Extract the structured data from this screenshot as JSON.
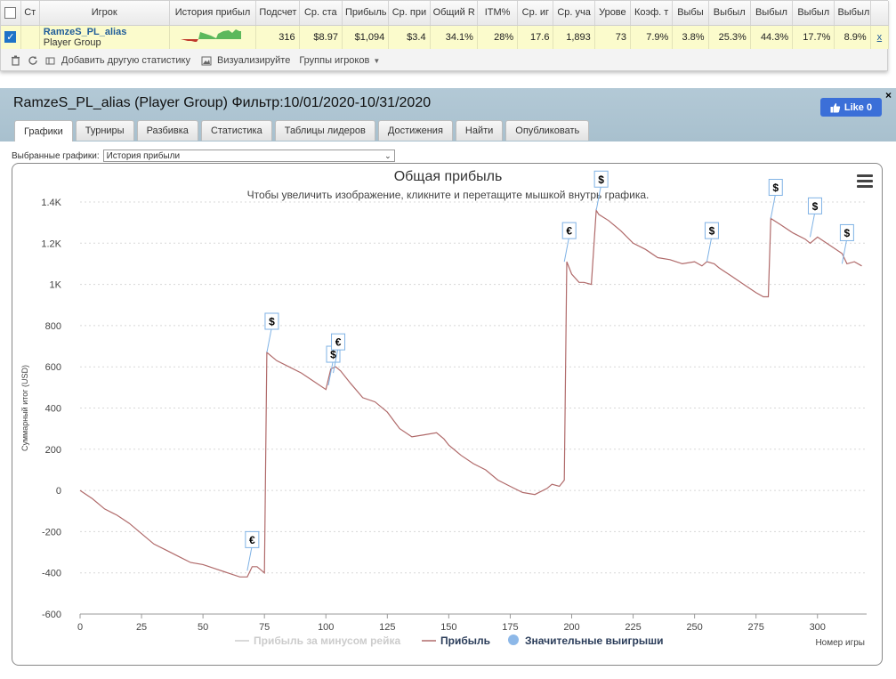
{
  "table": {
    "headers": [
      "Ст",
      "Игрок",
      "История прибыл",
      "Подсчет",
      "Ср. ста",
      "Прибыль",
      "Ср. при",
      "Общий R",
      "ITM%",
      "Ср. иг",
      "Ср. уча",
      "Урове",
      "Коэф. т",
      "Выбы",
      "Выбыл",
      "Выбыл",
      "Выбыл",
      "Выбыл"
    ],
    "row": {
      "player_name": "RamzeS_PL_alias",
      "player_group": "Player Group",
      "cells": [
        "316",
        "$8.97",
        "$1,094",
        "$3.4",
        "34.1%",
        "28%",
        "17.6",
        "1,893",
        "73",
        "7.9%",
        "3.8%",
        "25.3%",
        "44.3%",
        "17.7%",
        "8.9%"
      ],
      "remove": "x"
    }
  },
  "toolbar": {
    "add_stats": "Добавить другую статистику",
    "visualize": "Визуализируйте",
    "player_groups": "Группы игроков"
  },
  "main": {
    "title": "RamzeS_PL_alias (Player Group) Фильтр:10/01/2020-10/31/2020",
    "like_label": "Like 0",
    "close": "×",
    "tabs": [
      "Графики",
      "Турниры",
      "Разбивка",
      "Статистика",
      "Таблицы лидеров",
      "Достижения",
      "Найти",
      "Опубликовать"
    ],
    "selected_charts_label": "Выбранные графики:",
    "selected_chart_value": "История прибыли"
  },
  "chart_data": {
    "type": "line",
    "title": "Общая прибыль",
    "subtitle": "Чтобы увеличить изображение, кликните и перетащите мышкой внутрь графика.",
    "ylabel": "Суммарный итог (USD)",
    "xlabel": "Номер игры",
    "xlim": [
      0,
      320
    ],
    "ylim": [
      -600,
      1400
    ],
    "x_ticks": [
      0,
      25,
      50,
      75,
      100,
      125,
      150,
      175,
      200,
      225,
      250,
      275,
      300
    ],
    "y_ticks": [
      {
        "v": 1400,
        "label": "1.4K"
      },
      {
        "v": 1200,
        "label": "1.2K"
      },
      {
        "v": 1000,
        "label": "1K"
      },
      {
        "v": 800,
        "label": "800"
      },
      {
        "v": 600,
        "label": "600"
      },
      {
        "v": 400,
        "label": "400"
      },
      {
        "v": 200,
        "label": "200"
      },
      {
        "v": 0,
        "label": "0"
      },
      {
        "v": -200,
        "label": "-200"
      },
      {
        "v": -400,
        "label": "-400"
      },
      {
        "v": -600,
        "label": "-600"
      }
    ],
    "grid": true,
    "series": [
      {
        "name": "Прибыль за минусом рейка",
        "color": "#cccccc",
        "hidden": true,
        "x": [],
        "y": []
      },
      {
        "name": "Прибыль",
        "color": "#b06a6a",
        "x": [
          0,
          5,
          10,
          15,
          20,
          25,
          30,
          35,
          40,
          45,
          50,
          55,
          60,
          65,
          68,
          70,
          72,
          74,
          75,
          76,
          80,
          85,
          90,
          95,
          100,
          102,
          104,
          106,
          110,
          115,
          120,
          125,
          130,
          135,
          140,
          145,
          148,
          150,
          155,
          160,
          165,
          170,
          175,
          180,
          185,
          190,
          192,
          195,
          197,
          198,
          200,
          203,
          205,
          208,
          210,
          211,
          215,
          220,
          225,
          230,
          235,
          240,
          245,
          250,
          253,
          255,
          258,
          260,
          265,
          270,
          275,
          278,
          280,
          281,
          285,
          290,
          295,
          297,
          300,
          305,
          310,
          312,
          315,
          318
        ],
        "y": [
          0,
          -40,
          -90,
          -120,
          -160,
          -210,
          -260,
          -290,
          -320,
          -350,
          -360,
          -380,
          -400,
          -420,
          -420,
          -370,
          -370,
          -390,
          -400,
          670,
          630,
          600,
          570,
          530,
          490,
          590,
          600,
          580,
          520,
          450,
          430,
          380,
          300,
          260,
          270,
          280,
          250,
          220,
          170,
          130,
          100,
          50,
          20,
          -10,
          -20,
          10,
          30,
          20,
          50,
          1110,
          1050,
          1010,
          1010,
          1000,
          1360,
          1340,
          1310,
          1260,
          1200,
          1170,
          1130,
          1120,
          1100,
          1110,
          1090,
          1110,
          1100,
          1080,
          1040,
          1000,
          960,
          940,
          940,
          1320,
          1290,
          1250,
          1220,
          1200,
          1230,
          1190,
          1150,
          1100,
          1110,
          1090
        ]
      },
      {
        "name": "Значительные выигрыши",
        "color": "#8db8e8",
        "points": [
          {
            "x": 68,
            "y": -390,
            "label": "€"
          },
          {
            "x": 76,
            "y": 670,
            "label": "$"
          },
          {
            "x": 101,
            "y": 510,
            "label": "$"
          },
          {
            "x": 103,
            "y": 570,
            "label": "€"
          },
          {
            "x": 197,
            "y": 1110,
            "label": "€"
          },
          {
            "x": 210,
            "y": 1360,
            "label": "$"
          },
          {
            "x": 255,
            "y": 1110,
            "label": "$"
          },
          {
            "x": 281,
            "y": 1320,
            "label": "$"
          },
          {
            "x": 297,
            "y": 1230,
            "label": "$"
          },
          {
            "x": 310,
            "y": 1100,
            "label": "$"
          }
        ]
      }
    ],
    "legend": "bottom-center"
  }
}
